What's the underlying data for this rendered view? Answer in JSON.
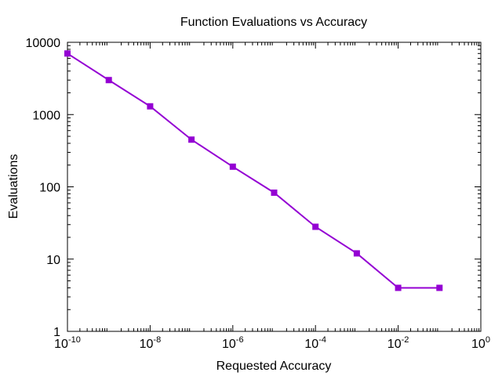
{
  "chart_data": {
    "type": "line",
    "title": "Function Evaluations vs Accuracy",
    "xlabel": "Requested Accuracy",
    "ylabel": "Evaluations",
    "xscale": "log",
    "yscale": "log",
    "xlim": [
      1e-10,
      1
    ],
    "ylim": [
      1,
      10000
    ],
    "grid": false,
    "x_ticks": [
      {
        "base": "10",
        "exp": "-10",
        "value": 1e-10
      },
      {
        "base": "10",
        "exp": "-8",
        "value": 1e-08
      },
      {
        "base": "10",
        "exp": "-6",
        "value": 1e-06
      },
      {
        "base": "10",
        "exp": "-4",
        "value": 0.0001
      },
      {
        "base": "10",
        "exp": "-2",
        "value": 0.01
      },
      {
        "base": "10",
        "exp": "0",
        "value": 1
      }
    ],
    "y_ticks": [
      {
        "label": "1",
        "value": 1
      },
      {
        "label": "10",
        "value": 10
      },
      {
        "label": "100",
        "value": 100
      },
      {
        "label": "1000",
        "value": 1000
      },
      {
        "label": "10000",
        "value": 10000
      }
    ],
    "series": [
      {
        "color": "#9400d3",
        "marker": "square",
        "x": [
          1e-10,
          1e-09,
          1e-08,
          1e-07,
          1e-06,
          1e-05,
          0.0001,
          0.001,
          0.01,
          0.1
        ],
        "y": [
          7000,
          3000,
          1300,
          450,
          190,
          83,
          28,
          12,
          4,
          4
        ]
      }
    ]
  }
}
